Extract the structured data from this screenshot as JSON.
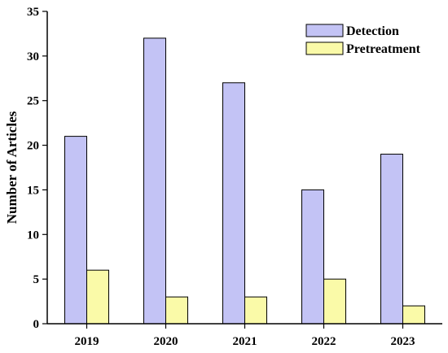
{
  "chart_data": {
    "type": "bar",
    "categories": [
      "2019",
      "2020",
      "2021",
      "2022",
      "2023"
    ],
    "series": [
      {
        "name": "Detection",
        "values": [
          21,
          32,
          27,
          15,
          19
        ],
        "color": "#c3c3f5"
      },
      {
        "name": "Pretreatment",
        "values": [
          6,
          3,
          3,
          5,
          2
        ],
        "color": "#fafaa8"
      }
    ],
    "xlabel": "",
    "ylabel": "Number of Articles",
    "ylim": [
      0,
      35
    ],
    "yticks": [
      0,
      5,
      10,
      15,
      20,
      25,
      30,
      35
    ],
    "grid": false,
    "legend_position": "top-right"
  }
}
